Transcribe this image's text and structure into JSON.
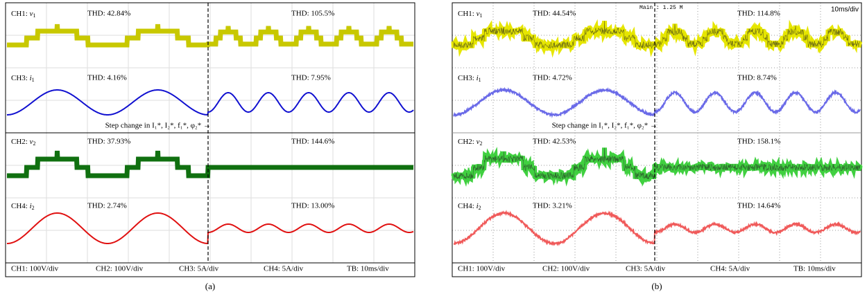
{
  "panels": [
    {
      "caption": "(a)",
      "channels": [
        {
          "channel": "CH1: ",
          "symbol": "v",
          "subscript": "1",
          "thd_before": "THD: 42.84%",
          "thd_after": "THD: 105.5%"
        },
        {
          "channel": "CH3: ",
          "symbol": "i",
          "subscript": "1",
          "thd_before": "THD: 4.16%",
          "thd_after": "THD: 7.95%"
        },
        {
          "channel": "CH2: ",
          "symbol": "v",
          "subscript": "2",
          "thd_before": "THD: 37.93%",
          "thd_after": "THD: 144.6%"
        },
        {
          "channel": "CH4: ",
          "symbol": "i",
          "subscript": "2",
          "thd_before": "THD: 2.74%",
          "thd_after": "THD: 13.00%"
        }
      ],
      "step_change": "Step change in I₁*, I₂*, f₁*, φ₂* →",
      "scales": [
        "CH1: 100V/div",
        "CH2: 100V/div",
        "CH3: 5A/div",
        "CH4: 5A/div",
        "TB: 10ms/div"
      ]
    },
    {
      "caption": "(b)",
      "header": "Main : 1.25 M",
      "timebase": "10ms/div",
      "channels": [
        {
          "channel": "CH1: ",
          "symbol": "v",
          "subscript": "1",
          "thd_before": "THD: 44.54%",
          "thd_after": "THD: 114.8%"
        },
        {
          "channel": "CH3: ",
          "symbol": "i",
          "subscript": "1",
          "thd_before": "THD: 4.72%",
          "thd_after": "THD: 8.74%"
        },
        {
          "channel": "CH2: ",
          "symbol": "v",
          "subscript": "2",
          "thd_before": "THD: 42.53%",
          "thd_after": "THD: 158.1%"
        },
        {
          "channel": "CH4: ",
          "symbol": "i",
          "subscript": "2",
          "thd_before": "THD: 3.21%",
          "thd_after": "THD: 14.64%"
        }
      ],
      "step_change": "Step change in I₁*, I₂*, f₁*, φ₂* →",
      "scales": [
        "CH1: 100V/div",
        "CH2: 100V/div",
        "CH3: 5A/div",
        "CH4: 5A/div",
        "TB: 10ms/div"
      ]
    }
  ]
}
